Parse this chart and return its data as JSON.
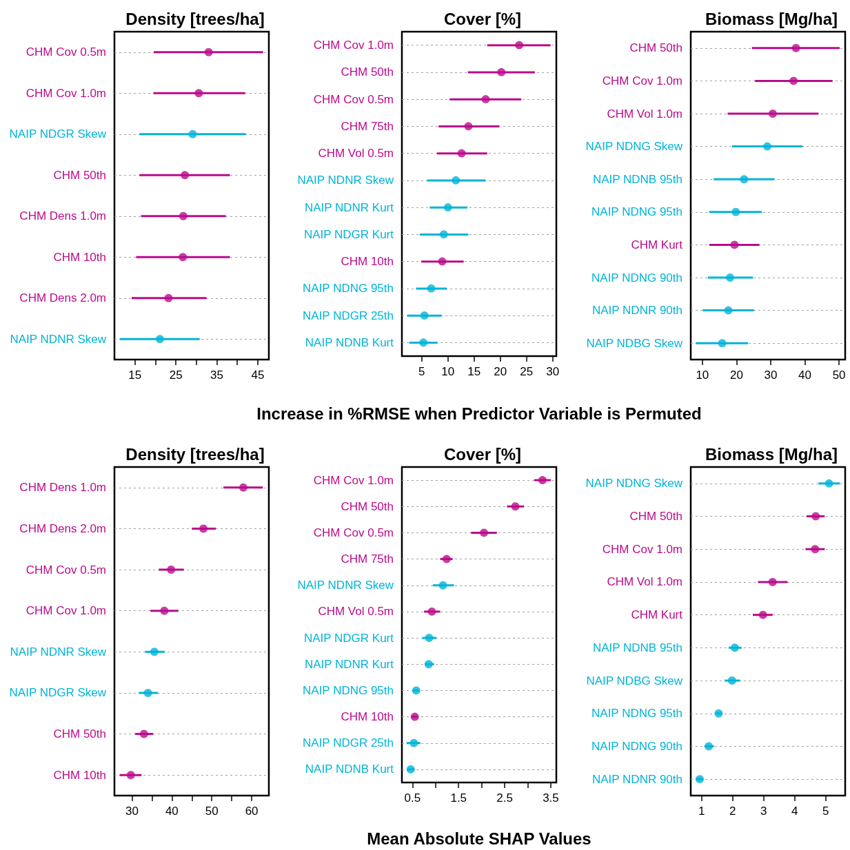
{
  "chart_data": [
    {
      "type": "scatter",
      "orientation": "horizontal",
      "title": "Density [trees/ha]",
      "marker": "circle",
      "grid": "y",
      "categories": [
        "CHM Cov 0.5m",
        "CHM Cov 1.0m",
        "NAIP NDGR Skew",
        "CHM 50th",
        "CHM Dens 1.0m",
        "CHM 10th",
        "CHM Dens 2.0m",
        "NAIP NDNR Skew"
      ],
      "values": [
        33.0,
        30.6,
        29.1,
        27.2,
        26.8,
        26.7,
        23.2,
        21.1
      ],
      "errors": [
        [
          19.6,
          46.3
        ],
        [
          19.5,
          41.9
        ],
        [
          16.1,
          42.1
        ],
        [
          16.1,
          38.2
        ],
        [
          16.5,
          37.2
        ],
        [
          15.3,
          38.2
        ],
        [
          14.2,
          32.5
        ],
        [
          11.3,
          30.8
        ]
      ],
      "colors": [
        "#bb0a8c",
        "#bb0a8c",
        "#00b4d8",
        "#bb0a8c",
        "#bb0a8c",
        "#bb0a8c",
        "#bb0a8c",
        "#00b4d8"
      ],
      "xlim": [
        10,
        47.7
      ],
      "xticks": [
        15,
        {
          "value": 20,
          "label": null
        },
        25,
        {
          "value": 30,
          "label": null
        },
        35,
        {
          "value": 40,
          "label": null
        },
        45
      ]
    },
    {
      "type": "scatter",
      "orientation": "horizontal",
      "title": "Cover [%]",
      "xlabel": "Increase in %RMSE when Predictor Variable is Permuted",
      "marker": "circle",
      "grid": "y",
      "categories": [
        "CHM Cov 1.0m",
        "CHM 50th",
        "CHM Cov 0.5m",
        "CHM 75th",
        "CHM Vol 0.5m",
        "NAIP NDNR Skew",
        "NAIP NDNR Kurt",
        "NAIP NDGR Kurt",
        "CHM 10th",
        "NAIP NDNG 95th",
        "NAIP NDGR 25th",
        "NAIP NDNB Kurt"
      ],
      "values": [
        23.6,
        20.2,
        17.2,
        13.9,
        12.6,
        11.5,
        10.0,
        9.2,
        8.9,
        6.8,
        5.5,
        5.3
      ],
      "errors": [
        [
          17.5,
          29.6
        ],
        [
          13.8,
          26.6
        ],
        [
          10.3,
          24.0
        ],
        [
          8.2,
          19.8
        ],
        [
          7.9,
          17.5
        ],
        [
          6.0,
          17.2
        ],
        [
          6.5,
          13.7
        ],
        [
          4.6,
          13.9
        ],
        [
          4.9,
          13.0
        ],
        [
          3.9,
          9.8
        ],
        [
          2.2,
          8.8
        ],
        [
          2.6,
          8.0
        ]
      ],
      "colors": [
        "#bb0a8c",
        "#bb0a8c",
        "#bb0a8c",
        "#bb0a8c",
        "#bb0a8c",
        "#00b4d8",
        "#00b4d8",
        "#00b4d8",
        "#bb0a8c",
        "#00b4d8",
        "#00b4d8",
        "#00b4d8"
      ],
      "xlim": [
        1.2,
        30.7
      ],
      "xticks": [
        5,
        10,
        15,
        20,
        25,
        30
      ]
    },
    {
      "type": "scatter",
      "orientation": "horizontal",
      "title": "Biomass [Mg/ha]",
      "marker": "circle",
      "grid": "y",
      "categories": [
        "CHM 50th",
        "CHM Cov 1.0m",
        "CHM Vol 1.0m",
        "NAIP NDNG Skew",
        "NAIP NDNB 95th",
        "NAIP NDNG 95th",
        "CHM Kurt",
        "NAIP NDNG 90th",
        "NAIP NDNR 90th",
        "NAIP NDBG Skew"
      ],
      "values": [
        37.4,
        36.7,
        30.6,
        29.0,
        22.2,
        19.8,
        19.4,
        18.1,
        17.6,
        15.8
      ],
      "errors": [
        [
          24.5,
          50.2
        ],
        [
          25.4,
          48.1
        ],
        [
          17.4,
          44.0
        ],
        [
          18.7,
          39.3
        ],
        [
          13.3,
          31.1
        ],
        [
          12.0,
          27.4
        ],
        [
          12.0,
          26.7
        ],
        [
          11.6,
          24.8
        ],
        [
          10.1,
          25.1
        ],
        [
          8.1,
          23.4
        ]
      ],
      "colors": [
        "#bb0a8c",
        "#bb0a8c",
        "#bb0a8c",
        "#00b4d8",
        "#00b4d8",
        "#00b4d8",
        "#bb0a8c",
        "#00b4d8",
        "#00b4d8",
        "#00b4d8"
      ],
      "xlim": [
        6.6,
        51.8
      ],
      "xticks": [
        10,
        20,
        30,
        40,
        50
      ]
    },
    {
      "type": "scatter",
      "orientation": "horizontal",
      "title": "Density [trees/ha]",
      "marker": "circle",
      "grid": "y",
      "categories": [
        "CHM Dens 1.0m",
        "CHM Dens 2.0m",
        "CHM Cov 0.5m",
        "CHM Cov 1.0m",
        "NAIP NDNR Skew",
        "NAIP NDGR Skew",
        "CHM 50th",
        "CHM 10th"
      ],
      "values": [
        57.9,
        47.9,
        39.8,
        38.1,
        35.6,
        34.0,
        33.0,
        29.7
      ],
      "errors": [
        [
          52.9,
          62.8
        ],
        [
          45.0,
          51.0
        ],
        [
          36.7,
          43.0
        ],
        [
          34.6,
          41.6
        ],
        [
          33.3,
          38.2
        ],
        [
          31.7,
          36.5
        ],
        [
          30.8,
          35.3
        ],
        [
          26.9,
          32.4
        ]
      ],
      "colors": [
        "#bb0a8c",
        "#bb0a8c",
        "#bb0a8c",
        "#bb0a8c",
        "#00b4d8",
        "#00b4d8",
        "#bb0a8c",
        "#bb0a8c"
      ],
      "xlim": [
        25.6,
        64.3
      ],
      "xticks": [
        30,
        {
          "value": 35,
          "label": null
        },
        40,
        {
          "value": 45,
          "label": null
        },
        50,
        {
          "value": 55,
          "label": null
        },
        60
      ]
    },
    {
      "type": "scatter",
      "orientation": "horizontal",
      "title": "Cover [%]",
      "xlabel": "Mean Absolute SHAP Values",
      "marker": "circle",
      "grid": "y",
      "categories": [
        "CHM Cov 1.0m",
        "CHM 50th",
        "CHM Cov 0.5m",
        "CHM 75th",
        "NAIP NDNR Skew",
        "CHM Vol 0.5m",
        "NAIP NDGR Kurt",
        "NAIP NDNR Kurt",
        "NAIP NDNG 95th",
        "CHM 10th",
        "NAIP NDGR 25th",
        "NAIP NDNB Kurt"
      ],
      "values": [
        3.32,
        2.73,
        2.05,
        1.24,
        1.16,
        0.92,
        0.86,
        0.85,
        0.58,
        0.55,
        0.53,
        0.46
      ],
      "errors": [
        [
          3.14,
          3.5
        ],
        [
          2.55,
          2.92
        ],
        [
          1.77,
          2.33
        ],
        [
          1.1,
          1.37
        ],
        [
          0.94,
          1.4
        ],
        [
          0.75,
          1.1
        ],
        [
          0.71,
          1.02
        ],
        [
          0.77,
          0.97
        ],
        [
          0.52,
          0.65
        ],
        [
          0.48,
          0.61
        ],
        [
          0.37,
          0.67
        ],
        [
          0.39,
          0.54
        ]
      ],
      "colors": [
        "#bb0a8c",
        "#bb0a8c",
        "#bb0a8c",
        "#bb0a8c",
        "#00b4d8",
        "#bb0a8c",
        "#00b4d8",
        "#00b4d8",
        "#00b4d8",
        "#bb0a8c",
        "#00b4d8",
        "#00b4d8"
      ],
      "xlim": [
        0.27,
        3.62
      ],
      "xticks": [
        0.5,
        {
          "value": 1,
          "label": null
        },
        1.5,
        {
          "value": 2,
          "label": null
        },
        2.5,
        {
          "value": 3,
          "label": null
        },
        3.5
      ]
    },
    {
      "type": "scatter",
      "orientation": "horizontal",
      "title": "Biomass [Mg/ha]",
      "marker": "circle",
      "grid": "y",
      "categories": [
        "NAIP NDNG Skew",
        "CHM 50th",
        "CHM Cov 1.0m",
        "CHM Vol 1.0m",
        "CHM Kurt",
        "NAIP NDNB 95th",
        "NAIP NDBG Skew",
        "NAIP NDNG 95th",
        "NAIP NDNG 90th",
        "NAIP NDNR 90th"
      ],
      "values": [
        5.11,
        4.68,
        4.66,
        3.29,
        2.98,
        2.07,
        1.98,
        1.55,
        1.23,
        0.94
      ],
      "errors": [
        [
          4.77,
          5.46
        ],
        [
          4.38,
          4.97
        ],
        [
          4.35,
          4.97
        ],
        [
          2.82,
          3.77
        ],
        [
          2.65,
          3.29
        ],
        [
          1.87,
          2.29
        ],
        [
          1.74,
          2.24
        ],
        [
          1.44,
          1.65
        ],
        [
          1.09,
          1.4
        ],
        [
          0.81,
          1.05
        ]
      ],
      "colors": [
        "#00b4d8",
        "#bb0a8c",
        "#bb0a8c",
        "#bb0a8c",
        "#bb0a8c",
        "#00b4d8",
        "#00b4d8",
        "#00b4d8",
        "#00b4d8",
        "#00b4d8"
      ],
      "xlim": [
        0.65,
        5.63
      ],
      "xticks": [
        1,
        2,
        3,
        4,
        5
      ]
    }
  ]
}
